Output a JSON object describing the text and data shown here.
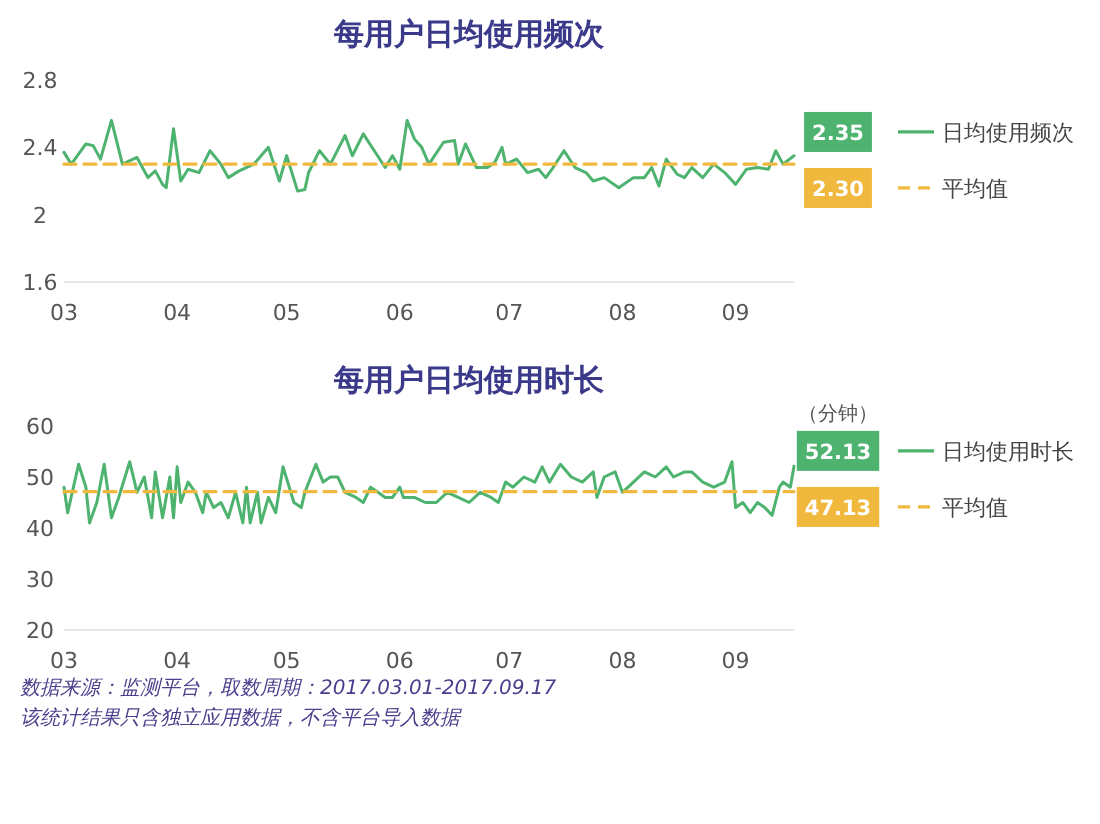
{
  "chart_data": [
    {
      "type": "line",
      "title": "每用户日均使用频次",
      "xlim": [
        "2017-03-01",
        "2017-09-17"
      ],
      "xticks": [
        {
          "value": "2017-03-01",
          "label": "03"
        },
        {
          "value": "2017-04-01",
          "label": "04"
        },
        {
          "value": "2017-05-01",
          "label": "05"
        },
        {
          "value": "2017-06-01",
          "label": "06"
        },
        {
          "value": "2017-07-01",
          "label": "07"
        },
        {
          "value": "2017-08-01",
          "label": "08"
        },
        {
          "value": "2017-09-01",
          "label": "09"
        }
      ],
      "ylim": [
        1.6,
        2.8
      ],
      "yticks": [
        1.6,
        2,
        2.4,
        2.8
      ],
      "legend": "right",
      "marker": "none",
      "grid": false,
      "series": [
        {
          "name": "日均使用频次",
          "color": "#4db36f",
          "line_style": "solid",
          "x": [
            "2017-03-01",
            "2017-03-03",
            "2017-03-07",
            "2017-03-09",
            "2017-03-11",
            "2017-03-14",
            "2017-03-17",
            "2017-03-21",
            "2017-03-24",
            "2017-03-26",
            "2017-03-28",
            "2017-03-29",
            "2017-03-31",
            "2017-04-02",
            "2017-04-04",
            "2017-04-07",
            "2017-04-10",
            "2017-04-13",
            "2017-04-15",
            "2017-04-18",
            "2017-04-22",
            "2017-04-26",
            "2017-04-29",
            "2017-05-01",
            "2017-05-04",
            "2017-05-06",
            "2017-05-07",
            "2017-05-10",
            "2017-05-13",
            "2017-05-17",
            "2017-05-19",
            "2017-05-22",
            "2017-05-25",
            "2017-05-28",
            "2017-05-30",
            "2017-06-01",
            "2017-06-03",
            "2017-06-05",
            "2017-06-07",
            "2017-06-09",
            "2017-06-13",
            "2017-06-16",
            "2017-06-17",
            "2017-06-19",
            "2017-06-22",
            "2017-06-25",
            "2017-06-27",
            "2017-06-29",
            "2017-06-30",
            "2017-07-03",
            "2017-07-06",
            "2017-07-09",
            "2017-07-11",
            "2017-07-13",
            "2017-07-16",
            "2017-07-19",
            "2017-07-22",
            "2017-07-24",
            "2017-07-27",
            "2017-07-31",
            "2017-08-04",
            "2017-08-07",
            "2017-08-09",
            "2017-08-11",
            "2017-08-13",
            "2017-08-16",
            "2017-08-18",
            "2017-08-20",
            "2017-08-23",
            "2017-08-26",
            "2017-08-29",
            "2017-09-01",
            "2017-09-04",
            "2017-09-07",
            "2017-09-10",
            "2017-09-12",
            "2017-09-14",
            "2017-09-17"
          ],
          "values": [
            2.37,
            2.3,
            2.42,
            2.41,
            2.33,
            2.56,
            2.3,
            2.34,
            2.22,
            2.26,
            2.18,
            2.16,
            2.51,
            2.2,
            2.27,
            2.25,
            2.38,
            2.3,
            2.22,
            2.26,
            2.3,
            2.4,
            2.2,
            2.35,
            2.14,
            2.15,
            2.25,
            2.38,
            2.3,
            2.47,
            2.35,
            2.48,
            2.38,
            2.28,
            2.35,
            2.27,
            2.56,
            2.45,
            2.4,
            2.3,
            2.43,
            2.44,
            2.3,
            2.42,
            2.28,
            2.28,
            2.31,
            2.4,
            2.3,
            2.33,
            2.25,
            2.27,
            2.22,
            2.28,
            2.38,
            2.28,
            2.25,
            2.2,
            2.22,
            2.16,
            2.22,
            2.22,
            2.28,
            2.17,
            2.33,
            2.24,
            2.22,
            2.28,
            2.22,
            2.3,
            2.25,
            2.18,
            2.27,
            2.28,
            2.27,
            2.38,
            2.3,
            2.35
          ],
          "value_labels": [
            null,
            null,
            null,
            null,
            null,
            null,
            null,
            null,
            null,
            null,
            null,
            null,
            null,
            null,
            null,
            null,
            null,
            null,
            null,
            null,
            null,
            null,
            null,
            null,
            null,
            null,
            null,
            null,
            null,
            null,
            null,
            null,
            null,
            null,
            null,
            null,
            null,
            null,
            null,
            null,
            null,
            null,
            null,
            null,
            null,
            null,
            null,
            null,
            null,
            null,
            null,
            null,
            null,
            null,
            null,
            null,
            null,
            null,
            null,
            null,
            null,
            null,
            null,
            null,
            null,
            null,
            null,
            null,
            null,
            null,
            null,
            null,
            null,
            null,
            null,
            null,
            null,
            "2.35"
          ]
        },
        {
          "name": "平均值",
          "color": "#f0b83c",
          "line_style": "dashed",
          "x": [
            "2017-03-01",
            "2017-09-17"
          ],
          "values": [
            2.3,
            2.3
          ],
          "value_labels": [
            null,
            "2.30"
          ]
        }
      ]
    },
    {
      "type": "line",
      "title": "每用户日均使用时长",
      "xlim": [
        "2017-03-01",
        "2017-09-17"
      ],
      "xticks": [
        {
          "value": "2017-03-01",
          "label": "03"
        },
        {
          "value": "2017-04-01",
          "label": "04"
        },
        {
          "value": "2017-05-01",
          "label": "05"
        },
        {
          "value": "2017-06-01",
          "label": "06"
        },
        {
          "value": "2017-07-01",
          "label": "07"
        },
        {
          "value": "2017-08-01",
          "label": "08"
        },
        {
          "value": "2017-09-01",
          "label": "09"
        }
      ],
      "ylim": [
        20,
        60
      ],
      "yticks": [
        20,
        30,
        40,
        50,
        60
      ],
      "legend": "right",
      "marker": "none",
      "grid": false,
      "annotations": [
        "（分钟）",
        "数据来源：监测平台，取数周期：2017.03.01-2017.09.17",
        "该统计结果只含独立应用数据，不含平台导入数据"
      ],
      "series": [
        {
          "name": "日均使用时长",
          "color": "#4db36f",
          "line_style": "solid",
          "x": [
            "2017-03-01",
            "2017-03-02",
            "2017-03-05",
            "2017-03-07",
            "2017-03-08",
            "2017-03-10",
            "2017-03-12",
            "2017-03-14",
            "2017-03-16",
            "2017-03-19",
            "2017-03-21",
            "2017-03-23",
            "2017-03-25",
            "2017-03-26",
            "2017-03-28",
            "2017-03-30",
            "2017-03-31",
            "2017-04-01",
            "2017-04-02",
            "2017-04-04",
            "2017-04-06",
            "2017-04-08",
            "2017-04-09",
            "2017-04-11",
            "2017-04-13",
            "2017-04-15",
            "2017-04-17",
            "2017-04-19",
            "2017-04-20",
            "2017-04-21",
            "2017-04-23",
            "2017-04-24",
            "2017-04-26",
            "2017-04-28",
            "2017-04-30",
            "2017-05-03",
            "2017-05-05",
            "2017-05-06",
            "2017-05-09",
            "2017-05-11",
            "2017-05-13",
            "2017-05-15",
            "2017-05-17",
            "2017-05-20",
            "2017-05-22",
            "2017-05-24",
            "2017-05-26",
            "2017-05-28",
            "2017-05-30",
            "2017-06-01",
            "2017-06-02",
            "2017-06-05",
            "2017-06-08",
            "2017-06-11",
            "2017-06-14",
            "2017-06-17",
            "2017-06-20",
            "2017-06-23",
            "2017-06-26",
            "2017-06-28",
            "2017-06-30",
            "2017-07-02",
            "2017-07-05",
            "2017-07-08",
            "2017-07-10",
            "2017-07-12",
            "2017-07-15",
            "2017-07-18",
            "2017-07-21",
            "2017-07-24",
            "2017-07-25",
            "2017-07-27",
            "2017-07-30",
            "2017-08-01",
            "2017-08-04",
            "2017-08-07",
            "2017-08-10",
            "2017-08-13",
            "2017-08-15",
            "2017-08-18",
            "2017-08-20",
            "2017-08-23",
            "2017-08-26",
            "2017-08-29",
            "2017-08-31",
            "2017-09-01",
            "2017-09-03",
            "2017-09-05",
            "2017-09-07",
            "2017-09-09",
            "2017-09-11",
            "2017-09-13",
            "2017-09-14",
            "2017-09-16",
            "2017-09-17"
          ],
          "values": [
            48,
            43,
            52.5,
            48,
            41,
            45,
            52.5,
            42,
            46,
            53,
            47,
            50,
            42,
            51,
            42,
            50,
            42,
            52,
            45,
            49,
            47,
            43,
            47,
            44,
            45,
            42,
            47,
            41,
            48,
            41,
            47,
            41,
            46,
            43,
            52,
            45,
            44,
            47,
            52.5,
            49,
            50,
            50,
            47,
            46,
            45,
            48,
            47,
            46,
            46,
            48,
            46,
            46,
            45,
            45,
            47,
            46,
            45,
            47,
            46,
            45,
            49,
            48,
            50,
            49,
            52,
            49,
            52.5,
            50,
            49,
            51,
            46,
            50,
            51,
            47,
            49,
            51,
            50,
            52,
            50,
            51,
            51,
            49,
            48,
            49,
            53,
            44,
            45,
            43,
            45,
            44,
            42.5,
            48,
            49,
            48,
            52.13
          ],
          "value_labels": [
            null,
            null,
            null,
            null,
            null,
            null,
            null,
            null,
            null,
            null,
            null,
            null,
            null,
            null,
            null,
            null,
            null,
            null,
            null,
            null,
            null,
            null,
            null,
            null,
            null,
            null,
            null,
            null,
            null,
            null,
            null,
            null,
            null,
            null,
            null,
            null,
            null,
            null,
            null,
            null,
            null,
            null,
            null,
            null,
            null,
            null,
            null,
            null,
            null,
            null,
            null,
            null,
            null,
            null,
            null,
            null,
            null,
            null,
            null,
            null,
            null,
            null,
            null,
            null,
            null,
            null,
            null,
            null,
            null,
            null,
            null,
            null,
            null,
            null,
            null,
            null,
            null,
            null,
            null,
            null,
            null,
            null,
            null,
            null,
            null,
            null,
            null,
            null,
            null,
            null,
            null,
            null,
            null,
            null,
            "52.13"
          ]
        },
        {
          "name": "平均值",
          "color": "#f0b83c",
          "line_style": "dashed",
          "x": [
            "2017-03-01",
            "2017-09-17"
          ],
          "values": [
            47.13,
            47.13
          ],
          "value_labels": [
            null,
            "47.13"
          ]
        }
      ]
    }
  ]
}
